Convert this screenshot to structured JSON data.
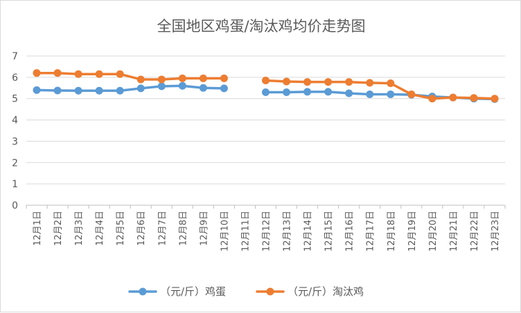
{
  "chart_data": {
    "type": "line",
    "title": "全国地区鸡蛋/淘汰鸡均价走势图",
    "xlabel": "",
    "ylabel": "",
    "ylim": [
      0,
      7
    ],
    "yticks": [
      0,
      1,
      2,
      3,
      4,
      5,
      6,
      7
    ],
    "grid": true,
    "legend_position": "bottom",
    "categories": [
      "12月1日",
      "12月2日",
      "12月3日",
      "12月4日",
      "12月5日",
      "12月6日",
      "12月7日",
      "12月8日",
      "12月9日",
      "12月10日",
      "12月11日",
      "12月12日",
      "12月13日",
      "12月14日",
      "12月15日",
      "12月16日",
      "12月17日",
      "12月18日",
      "12月19日",
      "12月20日",
      "12月21日",
      "12月22日",
      "12月23日"
    ],
    "series": [
      {
        "name": "（元/斤）鸡蛋",
        "color": "#5b9bd5",
        "values": [
          5.4,
          5.38,
          5.37,
          5.37,
          5.37,
          5.48,
          5.58,
          5.6,
          5.5,
          5.48,
          null,
          5.3,
          5.3,
          5.32,
          5.32,
          5.25,
          5.2,
          5.2,
          5.18,
          5.1,
          5.05,
          5.0,
          4.98
        ]
      },
      {
        "name": "（元/斤）淘汰鸡",
        "color": "#ed7d31",
        "values": [
          6.2,
          6.2,
          6.15,
          6.15,
          6.15,
          5.9,
          5.9,
          5.95,
          5.95,
          5.95,
          null,
          5.85,
          5.8,
          5.78,
          5.78,
          5.78,
          5.74,
          5.72,
          5.2,
          5.0,
          5.05,
          5.03,
          5.0
        ]
      }
    ]
  }
}
